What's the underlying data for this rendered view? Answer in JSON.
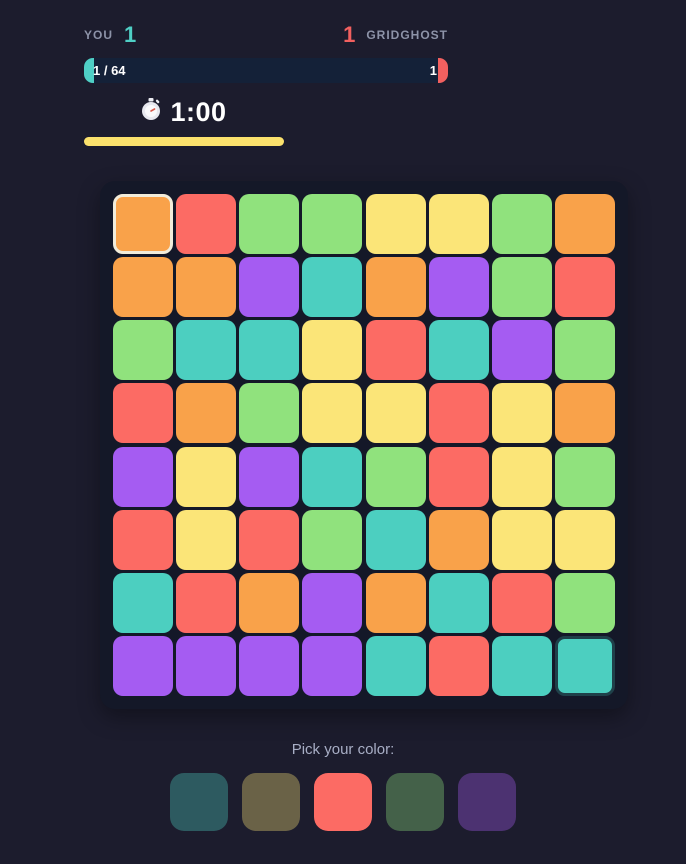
{
  "header": {
    "you_label": "YOU",
    "you_score": "1",
    "ghost_score": "1",
    "ghost_label": "GRIDGHOST",
    "progress": {
      "you_text": "1 / 64",
      "ghost_text": "1"
    }
  },
  "timer": {
    "icon": "stopwatch-icon",
    "value": "1:00"
  },
  "theme": {
    "page_bg": "#1c1c2d",
    "board_bg": "#141828",
    "bar_bg": "#142138",
    "timer_bar": "#fbe16d",
    "you_accent": "#4fcfc5",
    "ghost_accent": "#f2605f",
    "label_gray": "#8d93a8",
    "picker_label": "#a8aec5",
    "player_outline": "#f2ecda",
    "ghost_outline": "#1f4049"
  },
  "colors": {
    "orange": "#f9a24a",
    "red": "#fc6b64",
    "green": "#90e27d",
    "teal": "#4ccfc0",
    "yellow": "#fbe578",
    "purple": "#a55cf2"
  },
  "board": {
    "rows": 8,
    "cols": 8,
    "player_cell": {
      "row": 0,
      "col": 0
    },
    "ghost_cell": {
      "row": 7,
      "col": 7
    },
    "grid": [
      [
        "orange",
        "red",
        "green",
        "green",
        "yellow",
        "yellow",
        "green",
        "orange"
      ],
      [
        "orange",
        "orange",
        "purple",
        "teal",
        "orange",
        "purple",
        "green",
        "red"
      ],
      [
        "green",
        "teal",
        "teal",
        "yellow",
        "red",
        "teal",
        "purple",
        "green"
      ],
      [
        "red",
        "orange",
        "green",
        "yellow",
        "yellow",
        "red",
        "yellow",
        "orange"
      ],
      [
        "purple",
        "yellow",
        "purple",
        "teal",
        "green",
        "red",
        "yellow",
        "green"
      ],
      [
        "red",
        "yellow",
        "red",
        "green",
        "teal",
        "orange",
        "yellow",
        "yellow"
      ],
      [
        "teal",
        "red",
        "orange",
        "purple",
        "orange",
        "teal",
        "red",
        "green"
      ],
      [
        "purple",
        "purple",
        "purple",
        "purple",
        "teal",
        "red",
        "teal",
        "teal"
      ]
    ]
  },
  "picker": {
    "label": "Pick your color:",
    "swatches": [
      {
        "color": "teal",
        "state": "dimmed"
      },
      {
        "color": "yellow",
        "state": "dimmed"
      },
      {
        "color": "red",
        "state": "active"
      },
      {
        "color": "green",
        "state": "dimmed"
      },
      {
        "color": "purple",
        "state": "dimmed"
      }
    ]
  }
}
